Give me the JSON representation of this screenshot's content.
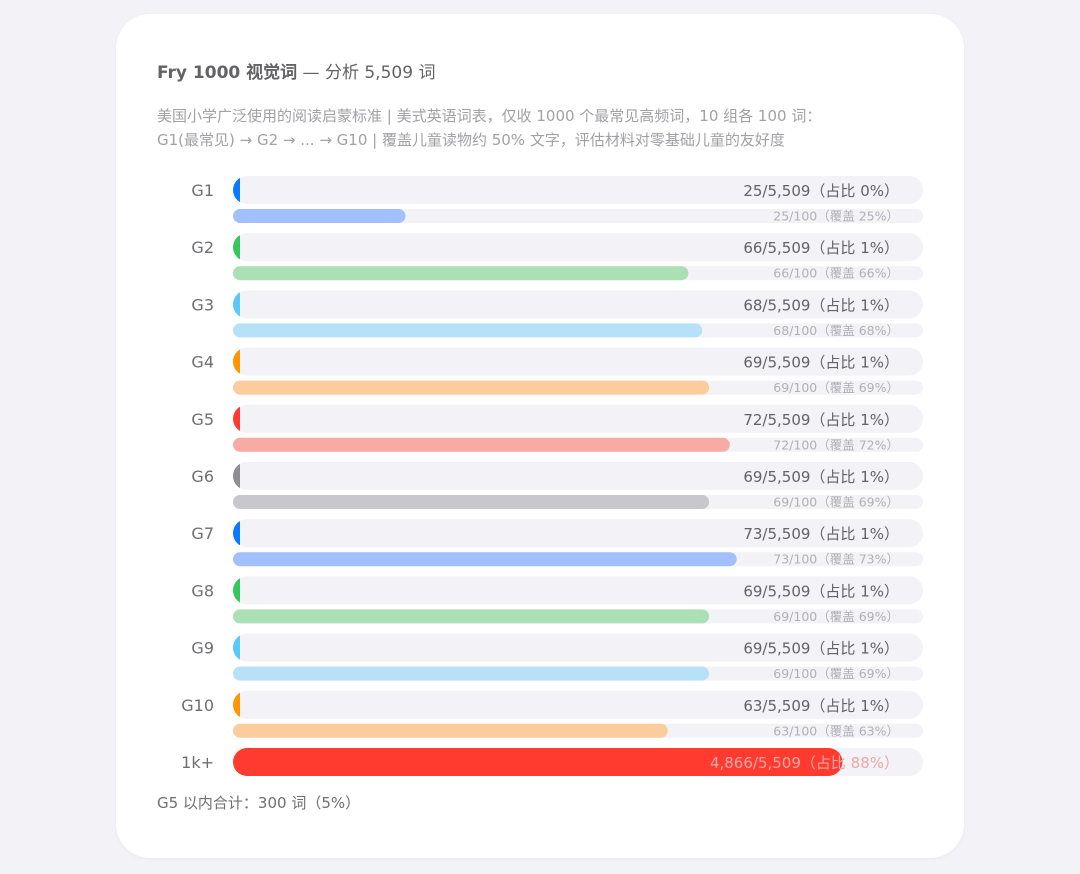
{
  "header": {
    "title_bold": "Fry 1000 视觉词",
    "title_rest": " — 分析 5,509 词",
    "subtitle_line1": "美国小学广泛使用的阅读启蒙标准 | 美式英语词表，仅收 1000 个最常见高频词，10 组各 100 词：",
    "subtitle_line2": "G1(最常见) → G2 → ... → G10 | 覆盖儿童读物约 50% 文字，评估材料对零基础儿童的友好度"
  },
  "footer": {
    "text": "G5 以内合计：300 词（5%）"
  },
  "chart_data": {
    "type": "bar",
    "orientation": "horizontal",
    "total_words": 5509,
    "group_size": 100,
    "categories": [
      "G1",
      "G2",
      "G3",
      "G4",
      "G5",
      "G6",
      "G7",
      "G8",
      "G9",
      "G10",
      "1k+"
    ],
    "values": [
      25,
      66,
      68,
      69,
      72,
      69,
      73,
      69,
      69,
      63,
      4866
    ],
    "primary_labels": [
      "25/5,509（占比 0%）",
      "66/5,509（占比 1%）",
      "68/5,509（占比 1%）",
      "69/5,509（占比 1%）",
      "72/5,509（占比 1%）",
      "69/5,509（占比 1%）",
      "73/5,509（占比 1%）",
      "69/5,509（占比 1%）",
      "69/5,509（占比 1%）",
      "63/5,509（占比 1%）",
      "4,866/5,509（占比 88%）"
    ],
    "coverage_labels": [
      "25/100（覆盖 25%）",
      "66/100（覆盖 66%）",
      "68/100（覆盖 68%）",
      "69/100（覆盖 69%）",
      "72/100（覆盖 72%）",
      "69/100（覆盖 69%）",
      "73/100（覆盖 73%）",
      "69/100（覆盖 69%）",
      "69/100（覆盖 69%）",
      "63/100（覆盖 63%）"
    ],
    "colors": [
      "#0a7aff",
      "#34c759",
      "#5ac8fa",
      "#ff9500",
      "#ff3b30",
      "#8e8e93",
      "#0a7aff",
      "#34c759",
      "#5ac8fa",
      "#ff9500",
      "#ff3b30"
    ],
    "light_colors": [
      "#a2c0fb",
      "#abe0b4",
      "#b7e1f9",
      "#fbcd9c",
      "#f8aaa4",
      "#c7c7cc",
      "#a2c0fb",
      "#abe0b4",
      "#b7e1f9",
      "#fbcd9c"
    ],
    "track_color": "#f2f2f7"
  }
}
